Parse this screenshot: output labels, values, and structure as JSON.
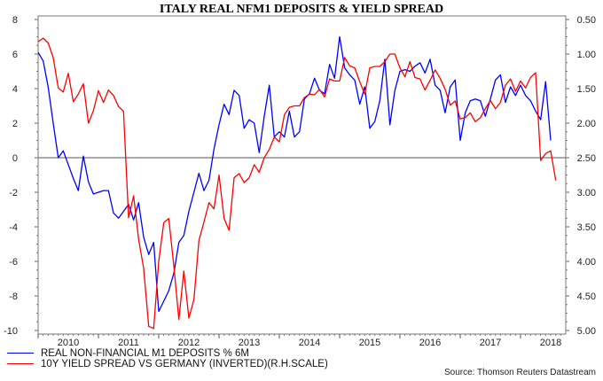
{
  "chart_data": {
    "type": "line",
    "title": "ITALY REAL NFM1 DEPOSITS & YIELD SPREAD",
    "source": "Source: Thomson Reuters Datastream",
    "x_tick_labels": [
      "2010",
      "2011",
      "2012",
      "2013",
      "2014",
      "2015",
      "2016",
      "2017",
      "2018"
    ],
    "y_left": {
      "ticks": [
        "8",
        "6",
        "4",
        "2",
        "0",
        "-2",
        "-4",
        "-6",
        "-8",
        "-10"
      ],
      "range": [
        -10,
        8
      ]
    },
    "y_right": {
      "ticks": [
        "0.50",
        "1.00",
        "1.50",
        "2.00",
        "2.50",
        "3.00",
        "3.50",
        "4.00",
        "4.50",
        "5.00"
      ],
      "range": [
        0.5,
        5.0
      ],
      "inverted": true
    },
    "reference_line": {
      "axis": "left",
      "value": 0
    },
    "x_start": "2010-01",
    "frequency": "monthly",
    "series": [
      {
        "name": "REAL NON-FINANCIAL M1 DEPOSITS % 6M",
        "color": "#0000ff",
        "axis": "left",
        "values": [
          6.1,
          5.6,
          4.1,
          2.0,
          0.0,
          0.4,
          -0.4,
          -1.2,
          -1.9,
          0.1,
          -1.4,
          -2.1,
          -2.0,
          -1.9,
          -1.9,
          -3.2,
          -3.5,
          -3.1,
          -2.7,
          -3.6,
          -2.6,
          -4.6,
          -5.6,
          -4.9,
          -8.9,
          -8.3,
          -7.7,
          -6.7,
          -4.9,
          -4.5,
          -3.1,
          -2.0,
          -0.9,
          -1.9,
          -1.3,
          0.5,
          1.9,
          3.1,
          2.5,
          3.9,
          3.6,
          1.7,
          2.2,
          2.0,
          0.3,
          2.4,
          4.2,
          1.2,
          1.5,
          1.2,
          2.7,
          1.2,
          1.5,
          3.4,
          3.7,
          4.6,
          3.9,
          3.7,
          5.4,
          4.6,
          7.0,
          5.2,
          4.8,
          4.5,
          3.1,
          4.1,
          1.7,
          2.1,
          3.3,
          5.7,
          1.9,
          3.9,
          5.0,
          5.1,
          5.0,
          5.3,
          5.5,
          4.9,
          5.7,
          4.2,
          3.9,
          2.6,
          4.1,
          4.5,
          1.0,
          2.6,
          3.3,
          3.4,
          3.3,
          2.4,
          3.4,
          4.5,
          4.8,
          3.2,
          4.1,
          3.6,
          4.2,
          3.6,
          3.3,
          2.7,
          2.2,
          4.4,
          1.0
        ]
      },
      {
        "name": "10Y YIELD SPREAD VS GERMANY (INVERTED)(R.H.SCALE)",
        "color": "#ff0000",
        "axis": "right",
        "values": [
          0.82,
          0.77,
          0.84,
          1.05,
          1.49,
          1.55,
          1.28,
          1.69,
          1.58,
          1.43,
          2.0,
          1.82,
          1.53,
          1.7,
          1.52,
          1.6,
          1.76,
          1.83,
          3.37,
          3.05,
          3.68,
          4.1,
          4.94,
          4.97,
          4.0,
          3.44,
          3.38,
          4.06,
          4.84,
          4.14,
          4.82,
          4.55,
          3.7,
          3.43,
          3.15,
          3.24,
          2.75,
          3.38,
          3.55,
          2.79,
          2.73,
          2.86,
          2.79,
          2.6,
          2.71,
          2.5,
          2.38,
          2.2,
          2.27,
          1.88,
          1.77,
          1.75,
          1.75,
          1.63,
          1.58,
          1.59,
          1.51,
          1.62,
          1.36,
          1.39,
          1.39,
          1.05,
          1.17,
          1.2,
          1.4,
          1.58,
          1.2,
          1.18,
          1.18,
          1.11,
          1.0,
          1.0,
          1.2,
          1.33,
          1.11,
          1.34,
          1.36,
          1.52,
          1.38,
          1.23,
          1.35,
          1.51,
          1.74,
          1.68,
          1.94,
          1.92,
          1.85,
          1.98,
          1.92,
          1.79,
          1.67,
          1.79,
          1.7,
          1.45,
          1.36,
          1.54,
          1.39,
          1.49,
          1.34,
          1.27,
          2.54,
          2.44,
          2.4,
          2.83
        ]
      }
    ],
    "grid": false,
    "legend": "bottom-left"
  }
}
